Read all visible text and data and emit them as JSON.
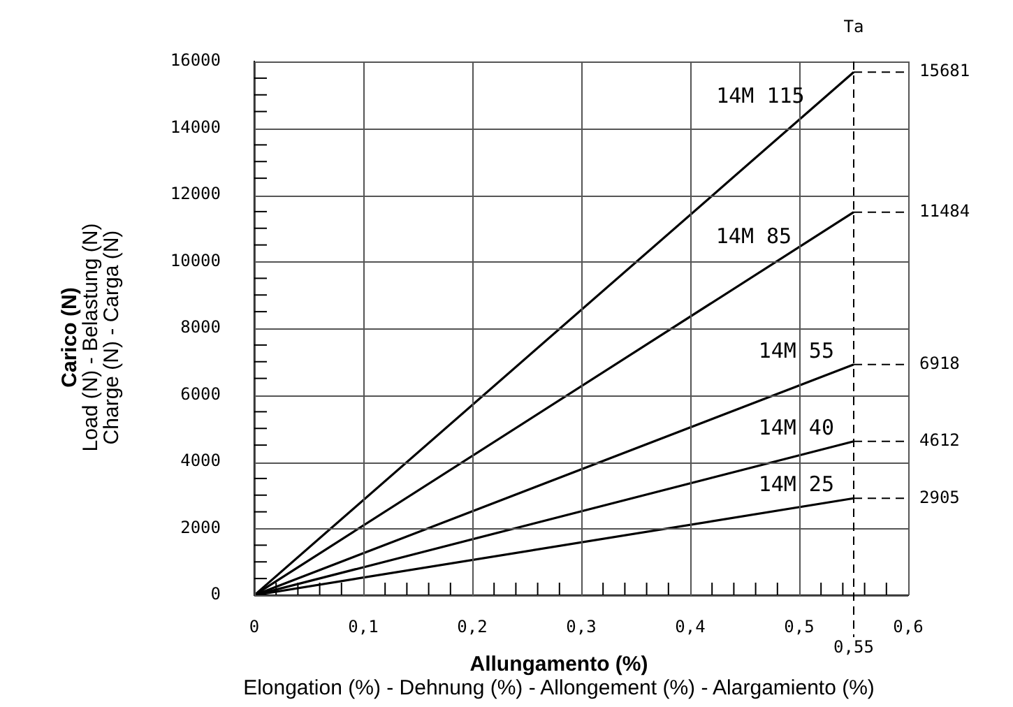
{
  "chart_data": {
    "type": "line",
    "xlabel": "Allungamento (%)\nElongation (%) - Dehnung (%) - Allongement (%) - Alargamiento (%)",
    "ylabel": "Carico (N)\nLoad (N) - Belastung (N)\nCharge (N) - Carga (N)",
    "x": [
      0,
      0.55
    ],
    "series": [
      {
        "name": "14M 115",
        "color": "#000000",
        "values": [
          0,
          15681
        ],
        "value_labels": [
          null,
          "15681"
        ]
      },
      {
        "name": "14M 85",
        "color": "#000000",
        "values": [
          0,
          11484
        ],
        "value_labels": [
          null,
          "11484"
        ]
      },
      {
        "name": "14M 55",
        "color": "#000000",
        "values": [
          0,
          6918
        ],
        "value_labels": [
          null,
          "6918"
        ]
      },
      {
        "name": "14M 40",
        "color": "#000000",
        "values": [
          0,
          4612
        ],
        "value_labels": [
          null,
          "4612"
        ]
      },
      {
        "name": "14M 25",
        "color": "#000000",
        "values": [
          0,
          2905
        ],
        "value_labels": [
          null,
          "2905"
        ]
      }
    ],
    "xlim": [
      0,
      0.6
    ],
    "ylim": [
      0,
      16000
    ],
    "xticks": [
      0,
      {
        "value": 0.02,
        "label": null
      },
      {
        "value": 0.04,
        "label": null
      },
      {
        "value": 0.06,
        "label": null
      },
      {
        "value": 0.08,
        "label": null
      },
      {
        "value": 0.1,
        "label": "0,1"
      },
      {
        "value": 0.12,
        "label": null
      },
      {
        "value": 0.14,
        "label": null
      },
      {
        "value": 0.16,
        "label": null
      },
      {
        "value": 0.18,
        "label": null
      },
      {
        "value": 0.2,
        "label": "0,2"
      },
      {
        "value": 0.22,
        "label": null
      },
      {
        "value": 0.24,
        "label": null
      },
      {
        "value": 0.26,
        "label": null
      },
      {
        "value": 0.28,
        "label": null
      },
      {
        "value": 0.3,
        "label": "0,3"
      },
      {
        "value": 0.32,
        "label": null
      },
      {
        "value": 0.34,
        "label": null
      },
      {
        "value": 0.36,
        "label": null
      },
      {
        "value": 0.38,
        "label": null
      },
      {
        "value": 0.4,
        "label": "0,4"
      },
      {
        "value": 0.42,
        "label": null
      },
      {
        "value": 0.44,
        "label": null
      },
      {
        "value": 0.46,
        "label": null
      },
      {
        "value": 0.48,
        "label": null
      },
      {
        "value": 0.5,
        "label": "0,5"
      },
      {
        "value": 0.52,
        "label": null
      },
      {
        "value": 0.54,
        "label": null
      },
      {
        "value": 0.56,
        "label": null
      },
      {
        "value": 0.58,
        "label": null
      },
      {
        "value": 0.6,
        "label": "0,6"
      }
    ],
    "yticks": [
      0,
      {
        "value": 500,
        "label": null
      },
      {
        "value": 1000,
        "label": null
      },
      {
        "value": 1500,
        "label": null
      },
      2000,
      {
        "value": 2500,
        "label": null
      },
      {
        "value": 3000,
        "label": null
      },
      {
        "value": 3500,
        "label": null
      },
      4000,
      {
        "value": 4500,
        "label": null
      },
      {
        "value": 5000,
        "label": null
      },
      {
        "value": 5500,
        "label": null
      },
      6000,
      {
        "value": 6500,
        "label": null
      },
      {
        "value": 7000,
        "label": null
      },
      {
        "value": 7500,
        "label": null
      },
      8000,
      {
        "value": 8500,
        "label": null
      },
      {
        "value": 9000,
        "label": null
      },
      {
        "value": 9500,
        "label": null
      },
      10000,
      {
        "value": 10500,
        "label": null
      },
      {
        "value": 11000,
        "label": null
      },
      {
        "value": 11500,
        "label": null
      },
      12000,
      {
        "value": 12500,
        "label": null
      },
      {
        "value": 13000,
        "label": null
      },
      {
        "value": 13500,
        "label": null
      },
      14000,
      {
        "value": 14500,
        "label": null
      },
      {
        "value": 15000,
        "label": null
      },
      {
        "value": 15500,
        "label": null
      },
      16000
    ],
    "ref_lines": [
      {
        "axis": "x",
        "value": 0.55,
        "label": "0,55",
        "line_style": "dashed",
        "color": "#000000"
      }
    ],
    "annotations": [
      "Ta"
    ],
    "grid": true,
    "legend": false,
    "marker": "none",
    "line_style": "solid"
  }
}
